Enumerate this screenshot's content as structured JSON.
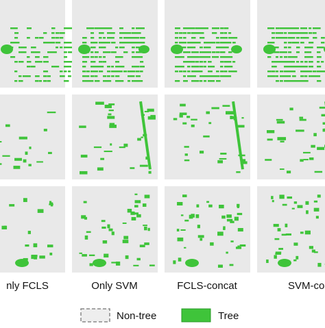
{
  "columns": [
    "nly FCLS",
    "Only SVM",
    "FCLS-concat",
    "SVM-conc"
  ],
  "legend": {
    "items": [
      {
        "label": "Non-tree"
      },
      {
        "label": "Tree"
      }
    ]
  }
}
